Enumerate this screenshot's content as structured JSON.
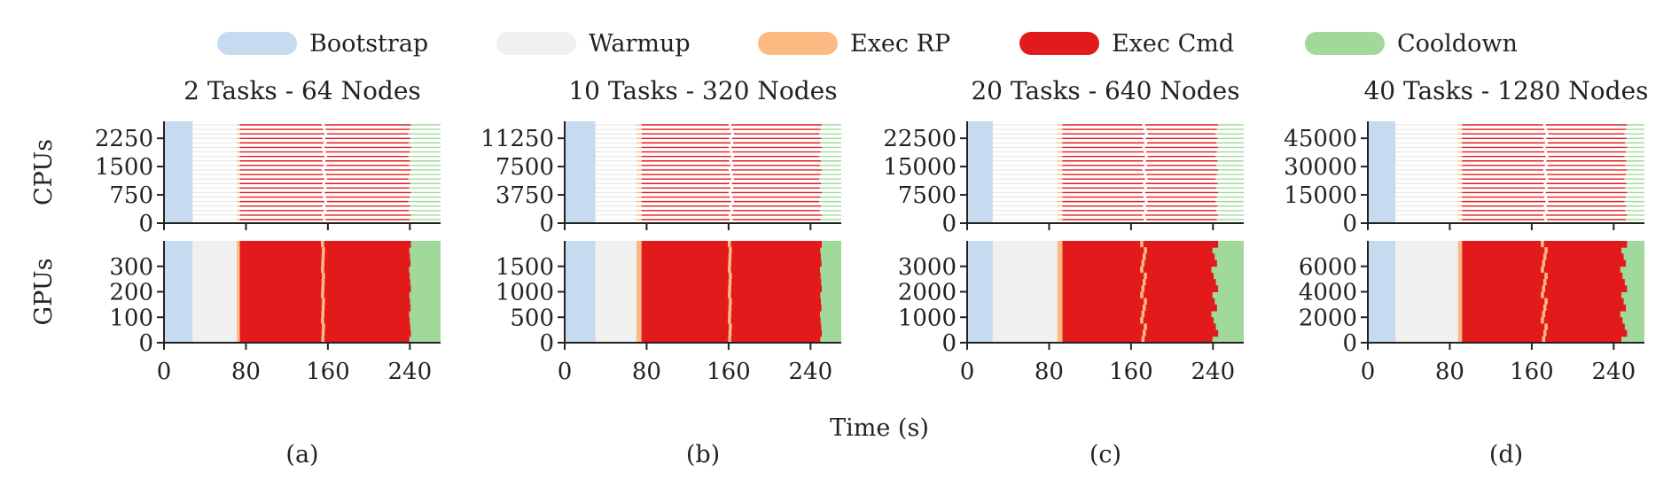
{
  "legend": {
    "items": [
      {
        "label": "Bootstrap",
        "color": "#c6dbef"
      },
      {
        "label": "Warmup",
        "color": "#f0f0f0"
      },
      {
        "label": "Exec RP",
        "color": "#fdbb84"
      },
      {
        "label": "Exec Cmd",
        "color": "#e31a1c"
      },
      {
        "label": "Cooldown",
        "color": "#a1d99b"
      }
    ]
  },
  "x_label": "Time (s)",
  "row_labels": {
    "cpu": "CPUs",
    "gpu": "GPUs"
  },
  "chart_data": [
    {
      "type": "gantt",
      "title": "2 Tasks - 64 Nodes",
      "caption": "(a)",
      "xlim": [
        0,
        270
      ],
      "xticks": [
        "0",
        "80",
        "160",
        "240"
      ],
      "cpu_ylim": [
        0,
        2700
      ],
      "cpu_yticks": [
        "0",
        "750",
        "1500",
        "2250"
      ],
      "gpu_ylim": [
        0,
        400
      ],
      "gpu_yticks": [
        "0",
        "100",
        "200",
        "300"
      ],
      "phases": {
        "bootstrap_end": 28,
        "warmup_end": 71,
        "exec_rp_end": 74,
        "exec_cmd_end": 241,
        "cooldown_end": 270
      },
      "task_boundaries": [
        155
      ]
    },
    {
      "type": "gantt",
      "title": "10 Tasks - 320 Nodes",
      "caption": "(b)",
      "xlim": [
        0,
        270
      ],
      "xticks": [
        "0",
        "80",
        "160",
        "240"
      ],
      "cpu_ylim": [
        0,
        13500
      ],
      "cpu_yticks": [
        "0",
        "3750",
        "7500",
        "11250"
      ],
      "gpu_ylim": [
        0,
        2000
      ],
      "gpu_yticks": [
        "0",
        "500",
        "1000",
        "1500"
      ],
      "phases": {
        "bootstrap_end": 30,
        "warmup_end": 70,
        "exec_rp_end": 75,
        "exec_cmd_end": 251,
        "cooldown_end": 270
      },
      "task_boundaries": [
        161
      ]
    },
    {
      "type": "gantt",
      "title": "20 Tasks - 640 Nodes",
      "caption": "(c)",
      "xlim": [
        0,
        270
      ],
      "xticks": [
        "0",
        "80",
        "160",
        "240"
      ],
      "cpu_ylim": [
        0,
        27000
      ],
      "cpu_yticks": [
        "0",
        "7500",
        "15000",
        "22500"
      ],
      "gpu_ylim": [
        0,
        4000
      ],
      "gpu_yticks": [
        "0",
        "1000",
        "2000",
        "3000"
      ],
      "phases": {
        "bootstrap_end": 25,
        "warmup_end": 88,
        "exec_rp_end": 93,
        "exec_cmd_end": 245,
        "cooldown_end": 270
      },
      "task_boundaries": [
        172
      ]
    },
    {
      "type": "gantt",
      "title": "40 Tasks - 1280 Nodes",
      "caption": "(d)",
      "xlim": [
        0,
        270
      ],
      "xticks": [
        "0",
        "80",
        "160",
        "240"
      ],
      "cpu_ylim": [
        0,
        54000
      ],
      "cpu_yticks": [
        "0",
        "15000",
        "30000",
        "45000"
      ],
      "gpu_ylim": [
        0,
        8000
      ],
      "gpu_yticks": [
        "0",
        "2000",
        "4000",
        "6000"
      ],
      "phases": {
        "bootstrap_end": 27,
        "warmup_end": 88,
        "exec_rp_end": 92,
        "exec_cmd_end": 253,
        "cooldown_end": 270
      },
      "task_boundaries": [
        172
      ]
    }
  ]
}
